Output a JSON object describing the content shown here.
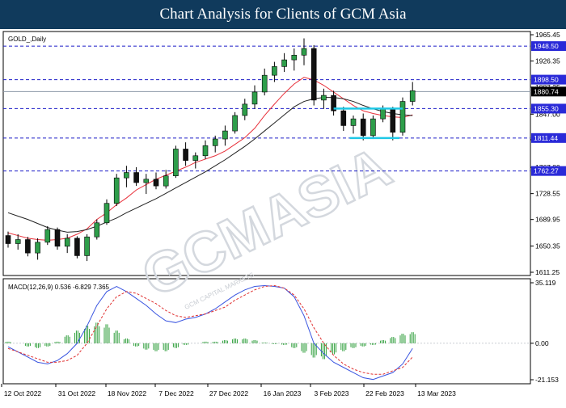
{
  "header": {
    "title": "Chart Analysis for Clients of GCM Asia"
  },
  "watermark": {
    "text": "GCMASIA",
    "subtext": "GCM CAPITAL MARKETS"
  },
  "chart_data": [
    {
      "type": "candlestick",
      "title": "GOLD_,Daily",
      "price_scale": {
        "ticks": [
          "1965.45",
          "1926.35",
          "1887.25",
          "1847.00",
          "1808.90",
          "1767.80",
          "1728.55",
          "1689.95",
          "1650.35",
          "1611.25"
        ],
        "ylim": [
          1611.25,
          1965.45
        ]
      },
      "x_axis_labels": [
        "12 Oct 2022",
        "31 Oct 2022",
        "18 Nov 2022",
        "7 Dec 2022",
        "27 Dec 2022",
        "16 Jan 2023",
        "3 Feb 2023",
        "22 Feb 2023",
        "13 Mar 2023"
      ],
      "levels": [
        {
          "label": "1948.50",
          "value": 1948.5,
          "style": "dashed-blue"
        },
        {
          "label": "1898.50",
          "value": 1898.5,
          "style": "dashed-blue"
        },
        {
          "label": "1880.74",
          "value": 1880.74,
          "style": "current-price"
        },
        {
          "label": "1855.30",
          "value": 1855.3,
          "style": "dashed-blue"
        },
        {
          "label": "1811.44",
          "value": 1811.44,
          "style": "dashed-blue"
        },
        {
          "label": "1762.27",
          "value": 1762.27,
          "style": "dashed-blue"
        }
      ],
      "moving_averages": [
        {
          "color": "#e8303a",
          "values": [
            1670,
            1666,
            1662,
            1660,
            1659,
            1660,
            1662,
            1668,
            1676,
            1690,
            1700,
            1712,
            1722,
            1734,
            1742,
            1750,
            1756,
            1762,
            1768,
            1775,
            1780,
            1785,
            1792,
            1802,
            1812,
            1826,
            1845,
            1862,
            1878,
            1892,
            1902,
            1898,
            1890,
            1880,
            1870,
            1860,
            1852,
            1848,
            1845,
            1843,
            1842,
            1846
          ]
        },
        {
          "color": "#222222",
          "values": [
            1700,
            1695,
            1690,
            1684,
            1678,
            1674,
            1671,
            1672,
            1675,
            1680,
            1686,
            1692,
            1700,
            1707,
            1714,
            1721,
            1729,
            1737,
            1745,
            1753,
            1761,
            1770,
            1779,
            1789,
            1799,
            1810,
            1822,
            1834,
            1846,
            1858,
            1866,
            1870,
            1872,
            1872,
            1870,
            1866,
            1860,
            1855,
            1851,
            1848,
            1846,
            1845
          ]
        }
      ],
      "candles_ohlc": [
        [
          1666,
          1672,
          1648,
          1654
        ],
        [
          1654,
          1668,
          1645,
          1660
        ],
        [
          1660,
          1664,
          1635,
          1640
        ],
        [
          1640,
          1662,
          1630,
          1656
        ],
        [
          1656,
          1680,
          1652,
          1675
        ],
        [
          1675,
          1678,
          1645,
          1650
        ],
        [
          1650,
          1668,
          1640,
          1662
        ],
        [
          1662,
          1665,
          1632,
          1636
        ],
        [
          1636,
          1668,
          1628,
          1664
        ],
        [
          1664,
          1690,
          1660,
          1685
        ],
        [
          1685,
          1720,
          1682,
          1714
        ],
        [
          1714,
          1758,
          1710,
          1752
        ],
        [
          1752,
          1770,
          1738,
          1760
        ],
        [
          1760,
          1768,
          1740,
          1745
        ],
        [
          1745,
          1758,
          1728,
          1750
        ],
        [
          1750,
          1760,
          1735,
          1740
        ],
        [
          1740,
          1764,
          1736,
          1755
        ],
        [
          1755,
          1800,
          1752,
          1795
        ],
        [
          1795,
          1805,
          1770,
          1778
        ],
        [
          1778,
          1790,
          1766,
          1785
        ],
        [
          1785,
          1808,
          1780,
          1800
        ],
        [
          1800,
          1815,
          1790,
          1810
        ],
        [
          1810,
          1830,
          1800,
          1822
        ],
        [
          1822,
          1850,
          1818,
          1845
        ],
        [
          1845,
          1870,
          1838,
          1862
        ],
        [
          1862,
          1890,
          1855,
          1880
        ],
        [
          1880,
          1915,
          1875,
          1905
        ],
        [
          1905,
          1925,
          1895,
          1918
        ],
        [
          1918,
          1938,
          1910,
          1928
        ],
        [
          1928,
          1945,
          1912,
          1935
        ],
        [
          1935,
          1960,
          1920,
          1945
        ],
        [
          1945,
          1950,
          1860,
          1868
        ],
        [
          1868,
          1885,
          1855,
          1875
        ],
        [
          1875,
          1882,
          1845,
          1852
        ],
        [
          1852,
          1858,
          1822,
          1830
        ],
        [
          1830,
          1845,
          1818,
          1840
        ],
        [
          1840,
          1848,
          1808,
          1815
        ],
        [
          1815,
          1845,
          1810,
          1840
        ],
        [
          1840,
          1860,
          1835,
          1855
        ],
        [
          1855,
          1858,
          1808,
          1820
        ],
        [
          1820,
          1872,
          1815,
          1866
        ],
        [
          1866,
          1895,
          1860,
          1882
        ]
      ]
    },
    {
      "type": "bar",
      "title": "MACD(12,26,9) 0.536 -6.829 7.365",
      "scale_ticks": [
        "35.119",
        "0.00",
        "-21.153"
      ],
      "ylim": [
        -21.153,
        35.119
      ],
      "series": [
        {
          "name": "MACD",
          "color": "#3a55e0",
          "values": [
            -2,
            -5,
            -8,
            -11,
            -12,
            -10,
            -6,
            0,
            10,
            22,
            30,
            33,
            30,
            26,
            22,
            17,
            13,
            12,
            14,
            15,
            17,
            20,
            24,
            28,
            31,
            33,
            33.5,
            33,
            32,
            27,
            16,
            0,
            -6,
            -11,
            -14,
            -17,
            -20,
            -21,
            -19,
            -17,
            -12,
            -3
          ]
        },
        {
          "name": "Signal",
          "color": "#e03030",
          "values": [
            -3,
            -5,
            -7,
            -9,
            -11,
            -11,
            -10,
            -7,
            0,
            10,
            20,
            27,
            30,
            29,
            26,
            23,
            19,
            16,
            15,
            16,
            17,
            19,
            21,
            25,
            28,
            31,
            33,
            33.5,
            32,
            28,
            20,
            9,
            0,
            -7,
            -12,
            -15,
            -17,
            -18,
            -18,
            -16,
            -14,
            -8
          ]
        }
      ],
      "histogram": [
        1,
        0,
        -2,
        -3,
        -2,
        1,
        5,
        8,
        11,
        13,
        12,
        8,
        3,
        -2,
        -4,
        -5,
        -5,
        -3,
        -1,
        0,
        1,
        1,
        2,
        3,
        3,
        2,
        0.5,
        -0.5,
        -1,
        -3,
        -6,
        -9,
        -10,
        -7,
        -5,
        -3,
        -2,
        -1,
        2,
        4,
        6,
        7
      ]
    }
  ]
}
